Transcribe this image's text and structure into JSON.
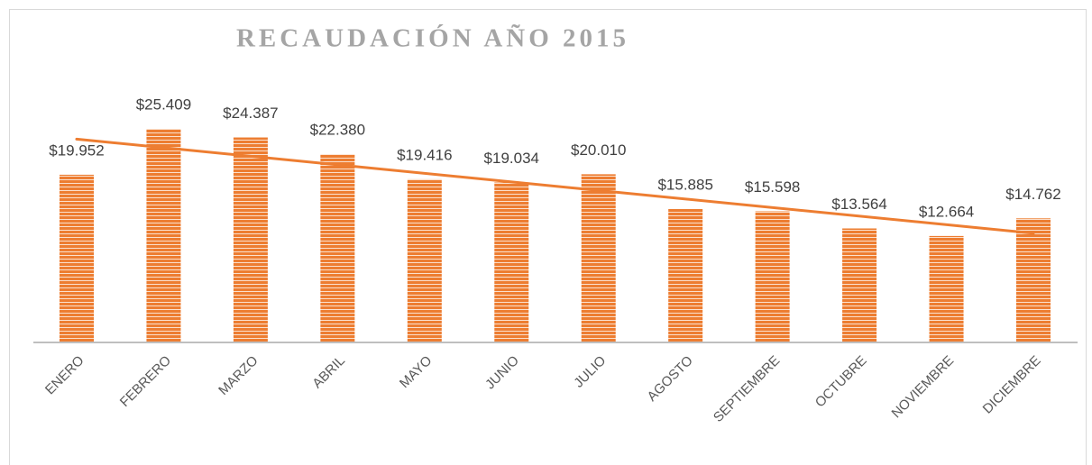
{
  "chart_data": {
    "type": "bar",
    "title": "RECAUDACIÓN AÑO 2015",
    "categories": [
      "ENERO",
      "FEBRERO",
      "MARZO",
      "ABRIL",
      "MAYO",
      "JUNIO",
      "JULIO",
      "AGOSTO",
      "SEPTIEMBRE",
      "OCTUBRE",
      "NOVIEMBRE",
      "DICIEMBRE"
    ],
    "values": [
      19952,
      25409,
      24387,
      22380,
      19416,
      19034,
      20010,
      15885,
      15598,
      13564,
      12664,
      14762
    ],
    "value_labels": [
      "$19.952",
      "$25.409",
      "$24.387",
      "$22.380",
      "$19.416",
      "$19.034",
      "$20.010",
      "$15.885",
      "$15.598",
      "$13.564",
      "$12.664",
      "$14.762"
    ],
    "color": "#ed7d31",
    "trendline": "linear"
  }
}
